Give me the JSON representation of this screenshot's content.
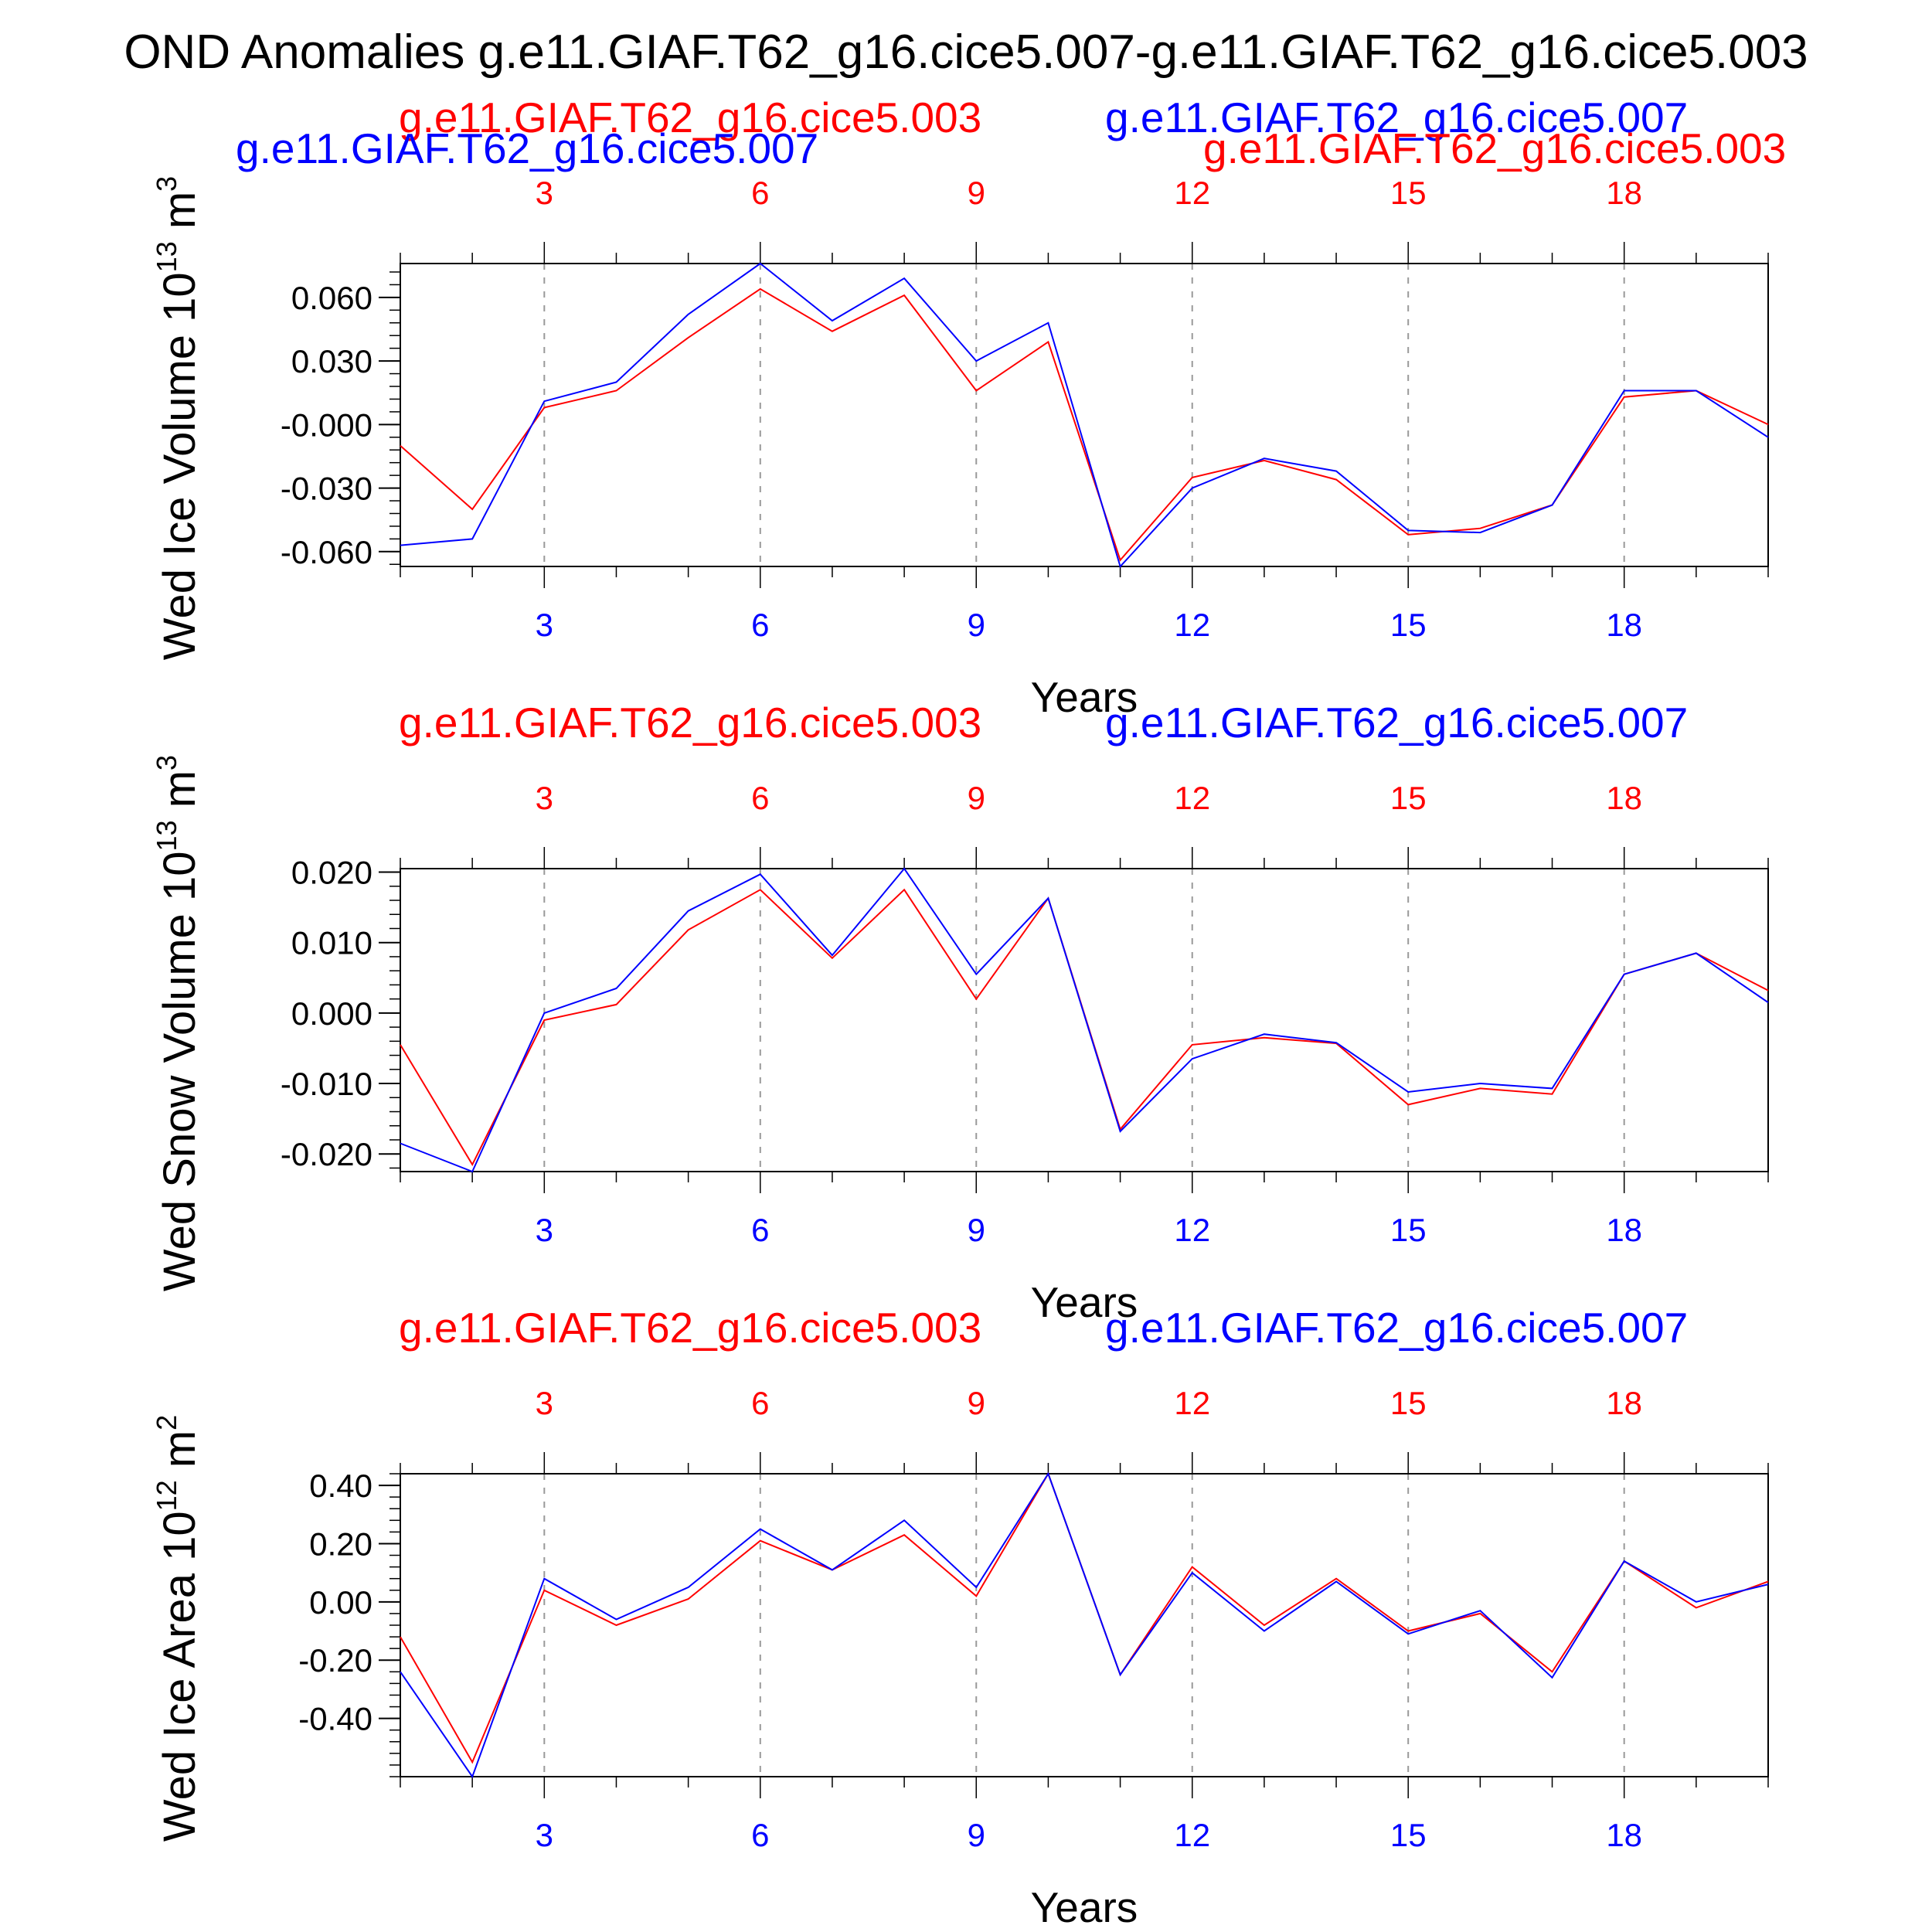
{
  "title": "OND Anomalies g.e11.GIAF.T62_g16.cice5.007-g.e11.GIAF.T62_g16.cice5.003",
  "colors": {
    "case_a": "#0000ff",
    "case_b": "#ff0000",
    "frame": "#000000",
    "grid": "#999999"
  },
  "chart_data": [
    {
      "type": "line",
      "ylabel": "Wed Ice Volume 10",
      "ylabel_exp": "13",
      "ylabel_unit": " m",
      "ylabel_unit_exp": "3",
      "xlabel": "Years",
      "legend_red": "g.e11.GIAF.T62_g16.cice5.003",
      "legend_blue": "g.e11.GIAF.T62_g16.cice5.007",
      "legend_blue_left": "g.e11.GIAF.T62_g16.cice5.007",
      "legend_red_right": "g.e11.GIAF.T62_g16.cice5.003",
      "xlim": [
        1,
        20
      ],
      "ylim": [
        -0.067,
        0.076
      ],
      "yticks": [
        0.06,
        0.03,
        -0.0,
        -0.03,
        -0.06
      ],
      "ytick_labels": [
        "0.060",
        "0.030",
        "-0.000",
        "-0.030",
        "-0.060"
      ],
      "yminor_step": 0.006,
      "xticks": [
        3,
        6,
        9,
        12,
        15,
        18
      ],
      "xtick_labels": [
        "3",
        "6",
        "9",
        "12",
        "15",
        "18"
      ],
      "x": [
        1,
        2,
        3,
        4,
        5,
        6,
        7,
        8,
        9,
        10,
        11,
        12,
        13,
        14,
        15,
        16,
        17,
        18,
        19,
        20
      ],
      "series": [
        {
          "name": "g.e11.GIAF.T62_g16.cice5.007",
          "color": "blue",
          "values": [
            -0.057,
            -0.054,
            0.011,
            0.02,
            0.052,
            0.076,
            0.049,
            0.069,
            0.03,
            0.048,
            -0.067,
            -0.03,
            -0.016,
            -0.022,
            -0.05,
            -0.051,
            -0.038,
            0.016,
            0.016,
            -0.006
          ]
        },
        {
          "name": "g.e11.GIAF.T62_g16.cice5.003",
          "color": "red",
          "values": [
            -0.01,
            -0.04,
            0.008,
            0.016,
            0.041,
            0.064,
            0.044,
            0.061,
            0.016,
            0.039,
            -0.064,
            -0.025,
            -0.017,
            -0.026,
            -0.052,
            -0.049,
            -0.038,
            0.013,
            0.016,
            0.0
          ]
        }
      ]
    },
    {
      "type": "line",
      "ylabel": "Wed Snow Volume 10",
      "ylabel_exp": "13",
      "ylabel_unit": " m",
      "ylabel_unit_exp": "3",
      "xlabel": "Years",
      "legend_red": "g.e11.GIAF.T62_g16.cice5.003",
      "legend_blue": "g.e11.GIAF.T62_g16.cice5.007",
      "xlim": [
        1,
        20
      ],
      "ylim": [
        -0.0225,
        0.0205
      ],
      "yticks": [
        0.02,
        0.01,
        0.0,
        -0.01,
        -0.02
      ],
      "ytick_labels": [
        "0.020",
        "0.010",
        "0.000",
        "-0.010",
        "-0.020"
      ],
      "yminor_step": 0.002,
      "xticks": [
        3,
        6,
        9,
        12,
        15,
        18
      ],
      "xtick_labels": [
        "3",
        "6",
        "9",
        "12",
        "15",
        "18"
      ],
      "x": [
        1,
        2,
        3,
        4,
        5,
        6,
        7,
        8,
        9,
        10,
        11,
        12,
        13,
        14,
        15,
        16,
        17,
        18,
        19,
        20
      ],
      "series": [
        {
          "name": "g.e11.GIAF.T62_g16.cice5.007",
          "color": "blue",
          "values": [
            -0.0185,
            -0.0225,
            0.0,
            0.0035,
            0.0145,
            0.0197,
            0.0082,
            0.0205,
            0.0055,
            0.0163,
            -0.0168,
            -0.0065,
            -0.003,
            -0.0042,
            -0.0112,
            -0.01,
            -0.0107,
            0.0055,
            0.0085,
            0.0015
          ]
        },
        {
          "name": "g.e11.GIAF.T62_g16.cice5.003",
          "color": "red",
          "values": [
            -0.0045,
            -0.0215,
            -0.001,
            0.0012,
            0.0118,
            0.0175,
            0.0078,
            0.0175,
            0.002,
            0.0163,
            -0.0165,
            -0.0045,
            -0.0035,
            -0.0043,
            -0.013,
            -0.0107,
            -0.0115,
            0.0055,
            0.0085,
            0.0032
          ]
        }
      ]
    },
    {
      "type": "line",
      "ylabel": "Wed Ice Area 10",
      "ylabel_exp": "12",
      "ylabel_unit": " m",
      "ylabel_unit_exp": "2",
      "xlabel": "Years",
      "legend_red": "g.e11.GIAF.T62_g16.cice5.003",
      "legend_blue": "g.e11.GIAF.T62_g16.cice5.007",
      "xlim": [
        1,
        20
      ],
      "ylim": [
        -0.6,
        0.44
      ],
      "yticks": [
        0.4,
        0.2,
        0.0,
        -0.2,
        -0.4
      ],
      "ytick_labels": [
        "0.40",
        "0.20",
        "0.00",
        "-0.20",
        "-0.40"
      ],
      "yminor_step": 0.04,
      "xticks": [
        3,
        6,
        9,
        12,
        15,
        18
      ],
      "xtick_labels": [
        "3",
        "6",
        "9",
        "12",
        "15",
        "18"
      ],
      "x": [
        1,
        2,
        3,
        4,
        5,
        6,
        7,
        8,
        9,
        10,
        11,
        12,
        13,
        14,
        15,
        16,
        17,
        18,
        19,
        20
      ],
      "series": [
        {
          "name": "g.e11.GIAF.T62_g16.cice5.007",
          "color": "blue",
          "values": [
            -0.24,
            -0.6,
            0.08,
            -0.06,
            0.05,
            0.25,
            0.11,
            0.28,
            0.05,
            0.44,
            -0.25,
            0.1,
            -0.1,
            0.07,
            -0.11,
            -0.03,
            -0.26,
            0.14,
            0.0,
            0.06
          ]
        },
        {
          "name": "g.e11.GIAF.T62_g16.cice5.003",
          "color": "red",
          "values": [
            -0.12,
            -0.55,
            0.04,
            -0.08,
            0.01,
            0.21,
            0.11,
            0.23,
            0.02,
            0.44,
            -0.25,
            0.12,
            -0.08,
            0.08,
            -0.1,
            -0.04,
            -0.24,
            0.14,
            -0.02,
            0.07
          ]
        }
      ]
    }
  ]
}
